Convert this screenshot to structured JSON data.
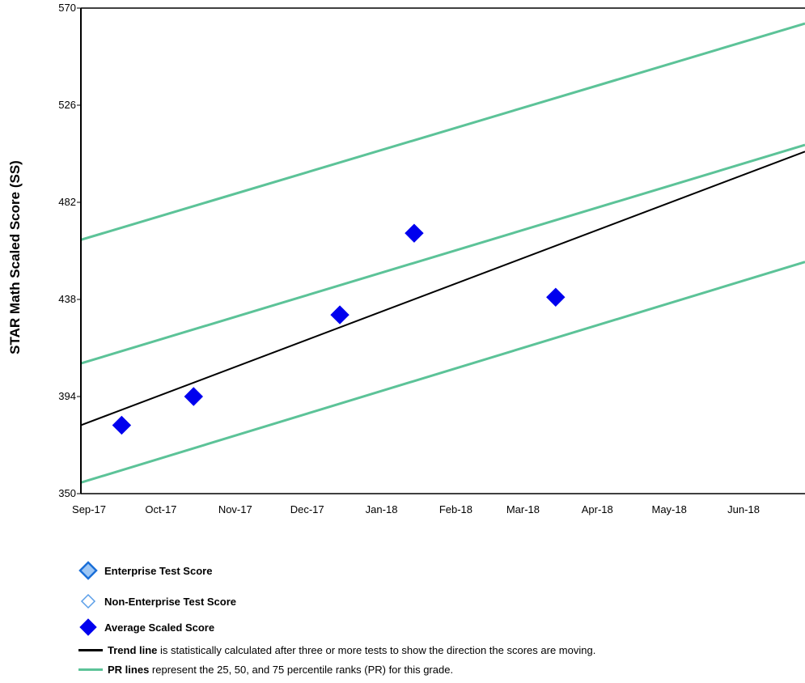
{
  "chart_data": {
    "type": "scatter",
    "ylabel": "STAR Math Scaled Score (SS)",
    "xlabel": "",
    "ylim": [
      350,
      570
    ],
    "yticks": [
      350,
      394,
      438,
      482,
      526,
      570
    ],
    "x_range_months": [
      "2017-09-01",
      "2018-06-30"
    ],
    "xticks": [
      {
        "label": "Sep-17",
        "date": "2017-09-01"
      },
      {
        "label": "Oct-17",
        "date": "2017-10-01"
      },
      {
        "label": "Nov-17",
        "date": "2017-11-01"
      },
      {
        "label": "Dec-17",
        "date": "2017-12-01"
      },
      {
        "label": "Jan-18",
        "date": "2018-01-01"
      },
      {
        "label": "Feb-18",
        "date": "2018-02-01"
      },
      {
        "label": "Mar-18",
        "date": "2018-03-01"
      },
      {
        "label": "Apr-18",
        "date": "2018-04-01"
      },
      {
        "label": "May-18",
        "date": "2018-05-01"
      },
      {
        "label": "Jun-18",
        "date": "2018-06-01"
      }
    ],
    "series": [
      {
        "name": "Average Scaled Score",
        "color": "#0000ee",
        "marker": "diamond",
        "points": [
          {
            "x": "2017-09-18",
            "y": 381
          },
          {
            "x": "2017-10-18",
            "y": 394
          },
          {
            "x": "2017-12-18",
            "y": 431
          },
          {
            "x": "2018-01-18",
            "y": 468
          },
          {
            "x": "2018-03-18",
            "y": 439
          }
        ]
      }
    ],
    "lines": [
      {
        "name": "Trend line",
        "color": "#000000",
        "start": {
          "x": "2017-09-01",
          "y": 381
        },
        "end": {
          "x": "2018-06-30",
          "y": 505
        }
      },
      {
        "name": "PR 75",
        "color": "#5cc398",
        "start": {
          "x": "2017-09-01",
          "y": 465
        },
        "end": {
          "x": "2018-06-30",
          "y": 563
        }
      },
      {
        "name": "PR 50",
        "color": "#5cc398",
        "start": {
          "x": "2017-09-01",
          "y": 409
        },
        "end": {
          "x": "2018-06-30",
          "y": 508
        }
      },
      {
        "name": "PR 25",
        "color": "#5cc398",
        "start": {
          "x": "2017-09-01",
          "y": 355
        },
        "end": {
          "x": "2018-06-30",
          "y": 455
        }
      }
    ],
    "legend": {
      "placement": "bottom",
      "items": [
        {
          "symbol": "diamond-light-filled",
          "bold": "Enterprise Test Score",
          "text": ""
        },
        {
          "symbol": "diamond-outline",
          "bold": "Non-Enterprise Test Score",
          "text": ""
        },
        {
          "symbol": "diamond-filled",
          "bold": "Average Scaled Score",
          "text": ""
        },
        {
          "symbol": "line-black",
          "bold": "Trend line",
          "text": " is statistically calculated after three or more tests to show the direction the scores are moving."
        },
        {
          "symbol": "line-green",
          "bold": "PR lines",
          "text": " represent the 25, 50, and 75 percentile ranks (PR) for this grade."
        }
      ]
    }
  },
  "colors": {
    "axis": "#000000",
    "point": "#0000ee",
    "trend": "#000000",
    "pr": "#5cc398",
    "enterprise_fill": "#9ec7f5",
    "enterprise_stroke": "#1a6fd8",
    "nonenterprise_stroke": "#5a9ee8"
  }
}
